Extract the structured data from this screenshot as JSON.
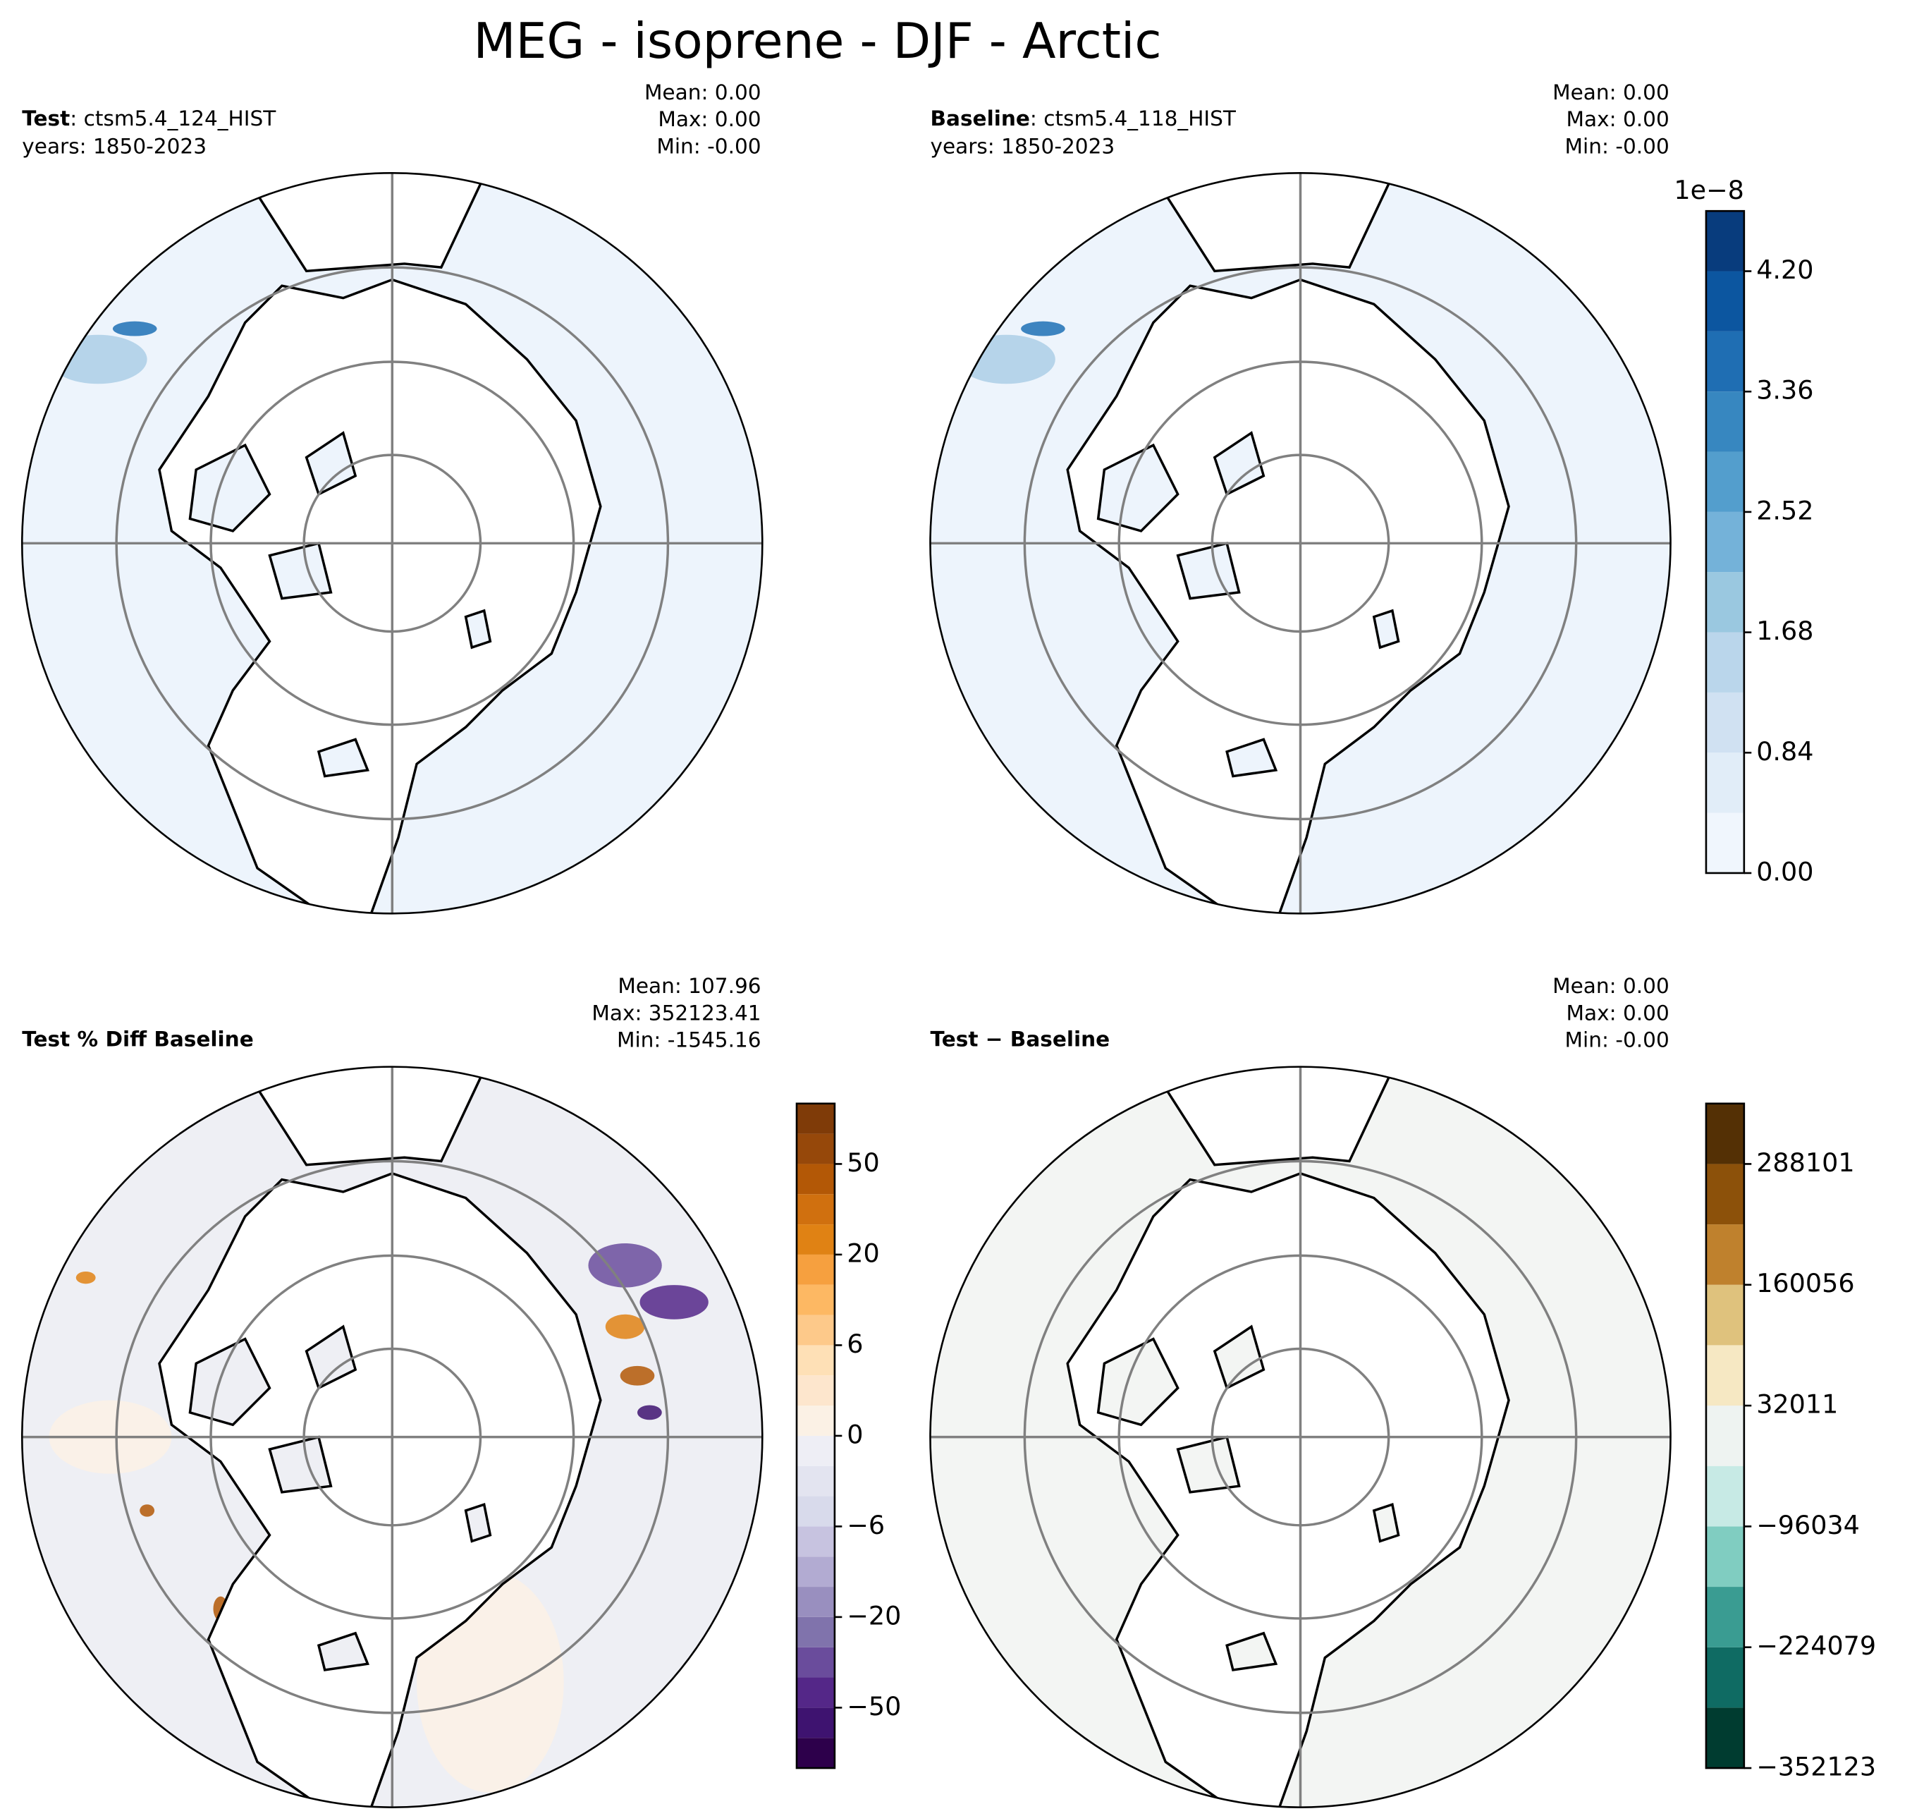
{
  "title": "MEG - isoprene - DJF - Arctic",
  "panels": [
    {
      "label_bold": "Test",
      "label_text": ": ctsm5.4_124_HIST",
      "years": "years: 1850-2023",
      "stats": [
        "Mean:  0.00",
        "Max:  0.00",
        "Min: -0.00"
      ],
      "land_color": "#edf4fc"
    },
    {
      "label_bold": "Baseline",
      "label_text": ": ctsm5.4_118_HIST",
      "years": "years: 1850-2023",
      "stats": [
        "Mean:  0.00",
        "Max:  0.00",
        "Min: -0.00"
      ],
      "land_color": "#edf4fc"
    },
    {
      "label_bold": "Test % Diff Baseline",
      "stats": [
        "Mean: 107.96",
        "Max: 352123.41",
        "Min: -1545.16"
      ],
      "land_color": "#eeeff4"
    },
    {
      "label_bold": "Test − Baseline",
      "stats": [
        "Mean:  0.00",
        "Max:  0.00",
        "Min: -0.00"
      ],
      "land_color": "#f3f5f3"
    }
  ],
  "colorbars": [
    {
      "colormap": "Blues",
      "offset_label": "1e−8",
      "levels": [
        0,
        0.42,
        0.84,
        1.26,
        1.68,
        2.1,
        2.52,
        2.94,
        3.36,
        3.78,
        4.2,
        4.62
      ],
      "colors": [
        "#f0f6fd",
        "#e1edf8",
        "#d0e1f2",
        "#bad6eb",
        "#9ac8e0",
        "#74b2d9",
        "#539ecd",
        "#3787c0",
        "#1f6eb3",
        "#0c56a0",
        "#083c7d"
      ],
      "ticks": [
        {
          "value": 0,
          "label": "0.00"
        },
        0.84,
        1.68,
        2.52,
        3.36,
        {
          "value": 4.2,
          "label": "4.20"
        }
      ]
    },
    {
      "colormap": "PuOr",
      "levels": [
        -100,
        -70,
        -50,
        -40,
        -30,
        -20,
        -15,
        -10,
        -6,
        -4,
        -2,
        0,
        2,
        4,
        6,
        10,
        15,
        20,
        30,
        40,
        50,
        70,
        100
      ],
      "colors": [
        "#2d004b",
        "#3e1370",
        "#542788",
        "#6a4c9c",
        "#8073ac",
        "#998fbf",
        "#b2abd2",
        "#c7c3e0",
        "#d8daeb",
        "#e3e4f0",
        "#eeeef5",
        "#fbf1e5",
        "#fde6cd",
        "#fee0b6",
        "#fdc98a",
        "#fdb863",
        "#f6a03f",
        "#e08214",
        "#d0700f",
        "#b35806",
        "#96480a",
        "#7f3b08"
      ],
      "ticks": [
        {
          "value": -50,
          "label": "−50"
        },
        {
          "value": -20,
          "label": "−20"
        },
        {
          "value": -6,
          "label": "−6"
        },
        0,
        6,
        20,
        50
      ]
    },
    {
      "colormap": "BrBG",
      "levels": [
        -352123,
        -288101,
        -224079,
        -160056,
        -96034,
        -32011,
        32011,
        96034,
        160056,
        224079,
        288101,
        352123
      ],
      "colors": [
        "#003c30",
        "#0f6b63",
        "#3a9c92",
        "#80cdc1",
        "#c7eae5",
        "#eef3f1",
        "#f6e8c3",
        "#dfc27d",
        "#bf812d",
        "#8c510a",
        "#543005"
      ],
      "ticks": [
        {
          "value": -352123,
          "label": "−352123"
        },
        {
          "value": -224079,
          "label": "−224079"
        },
        {
          "value": -96034,
          "label": "−96034"
        },
        32011,
        160056,
        288101
      ]
    }
  ]
}
